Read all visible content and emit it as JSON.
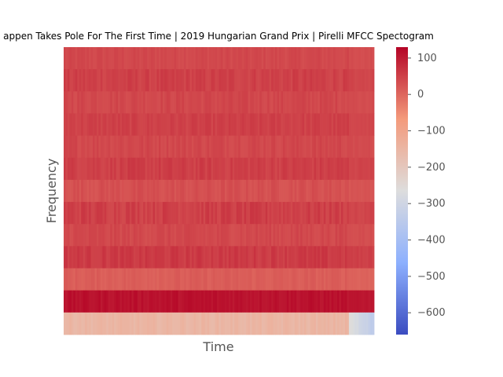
{
  "chart_data": {
    "type": "heatmap",
    "title": "appen Takes Pole For The First Time | 2019 Hungarian Grand Prix | Pirelli MFCC Spectogram",
    "xlabel": "Time",
    "ylabel": "Frequency",
    "xticks": "none",
    "yticks": "none",
    "grid": false,
    "colormap": "coolwarm",
    "colorbar": {
      "range": [
        -660,
        130
      ],
      "ticks": [
        100,
        0,
        -100,
        -200,
        -300,
        -400,
        -500,
        -600
      ],
      "tick_labels": [
        "100",
        "0",
        "−100",
        "−200",
        "−300",
        "−400",
        "−500",
        "−600"
      ]
    },
    "rows_top_to_bottom": [
      {
        "band": 1,
        "mean_value": 40,
        "variation": 8
      },
      {
        "band": 2,
        "mean_value": 50,
        "variation": 12
      },
      {
        "band": 3,
        "mean_value": 42,
        "variation": 10
      },
      {
        "band": 4,
        "mean_value": 50,
        "variation": 10
      },
      {
        "band": 5,
        "mean_value": 42,
        "variation": 10
      },
      {
        "band": 6,
        "mean_value": 52,
        "variation": 12
      },
      {
        "band": 7,
        "mean_value": 30,
        "variation": 10
      },
      {
        "band": 8,
        "mean_value": 52,
        "variation": 14
      },
      {
        "band": 9,
        "mean_value": 40,
        "variation": 10
      },
      {
        "band": 10,
        "mean_value": 58,
        "variation": 12
      },
      {
        "band": 11,
        "mean_value": 12,
        "variation": 8
      },
      {
        "band": 12,
        "mean_value": 112,
        "variation": 10
      },
      {
        "band": 13,
        "mean_value": -150,
        "variation": 12
      }
    ],
    "notes_tail": {
      "columns_fraction_start": 0.92,
      "row13_value_at_end": -350
    }
  }
}
